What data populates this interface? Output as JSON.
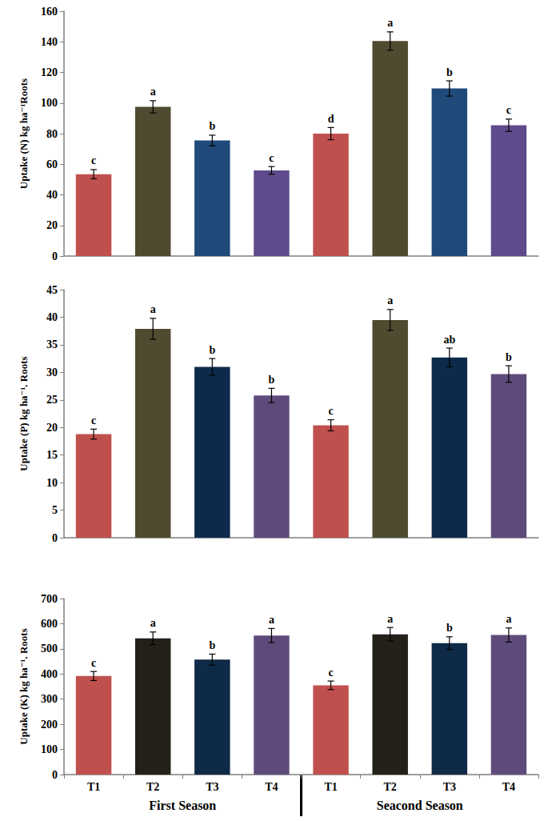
{
  "chart_data": [
    {
      "type": "bar",
      "ylabel": "Uptake (N) kg ha⁻¹Roots",
      "categories": [
        "T1",
        "T2",
        "T3",
        "T4",
        "T1",
        "T2",
        "T3",
        "T4"
      ],
      "values": [
        53.5,
        97.5,
        75.5,
        56,
        80,
        140.5,
        109.5,
        85.5
      ],
      "errors": [
        3,
        4,
        3.5,
        2.5,
        4,
        6,
        5,
        4
      ],
      "letters": [
        "c",
        "a",
        "b",
        "c",
        "d",
        "a",
        "b",
        "c"
      ],
      "colors": [
        "#c0504d",
        "#4f4b30",
        "#1f4a7a",
        "#5f4b8b",
        "#c0504d",
        "#4f4b30",
        "#1f4a7a",
        "#5f4b8b"
      ],
      "ylim": [
        0,
        160
      ],
      "yticks": [
        0,
        20,
        40,
        60,
        80,
        100,
        120,
        140,
        160
      ],
      "grid": false,
      "tick_labels": "y"
    },
    {
      "type": "bar",
      "ylabel": "Uptake (P) kg ha⁻¹. Roots",
      "categories": [
        "T1",
        "T2",
        "T3",
        "T4",
        "T1",
        "T2",
        "T3",
        "T4"
      ],
      "values": [
        18.8,
        37.9,
        31,
        25.8,
        20.4,
        39.5,
        32.7,
        29.7
      ],
      "errors": [
        0.9,
        1.9,
        1.5,
        1.3,
        1,
        1.9,
        1.7,
        1.5
      ],
      "letters": [
        "c",
        "a",
        "b",
        "b",
        "c",
        "a",
        "ab",
        "b"
      ],
      "colors": [
        "#c0504d",
        "#4f4b30",
        "#0d2a4a",
        "#5f4b7b",
        "#c0504d",
        "#4f4b30",
        "#0d2a4a",
        "#5f4b7b"
      ],
      "ylim": [
        0,
        45
      ],
      "yticks": [
        0,
        5,
        10,
        15,
        20,
        25,
        30,
        35,
        40,
        45
      ],
      "grid": false,
      "tick_labels": "y"
    },
    {
      "type": "bar",
      "ylabel": "Uptake (K) kg ha⁻¹. Roots",
      "categories": [
        "T1",
        "T2",
        "T3",
        "T4",
        "T1",
        "T2",
        "T3",
        "T4"
      ],
      "group_labels": [
        "First Season",
        "Seacond Season"
      ],
      "values": [
        392,
        542,
        457,
        553,
        355,
        558,
        523,
        555
      ],
      "errors": [
        18,
        25,
        22,
        28,
        17,
        27,
        25,
        28
      ],
      "letters": [
        "c",
        "a",
        "b",
        "a",
        "c",
        "a",
        "b",
        "a"
      ],
      "colors": [
        "#c0504d",
        "#23201a",
        "#0f2a47",
        "#5f4b7b",
        "#c0504d",
        "#23201a",
        "#0f2a47",
        "#5f4b7b"
      ],
      "ylim": [
        0,
        700
      ],
      "yticks": [
        0,
        100,
        200,
        300,
        400,
        500,
        600,
        700
      ],
      "grid": false
    }
  ]
}
